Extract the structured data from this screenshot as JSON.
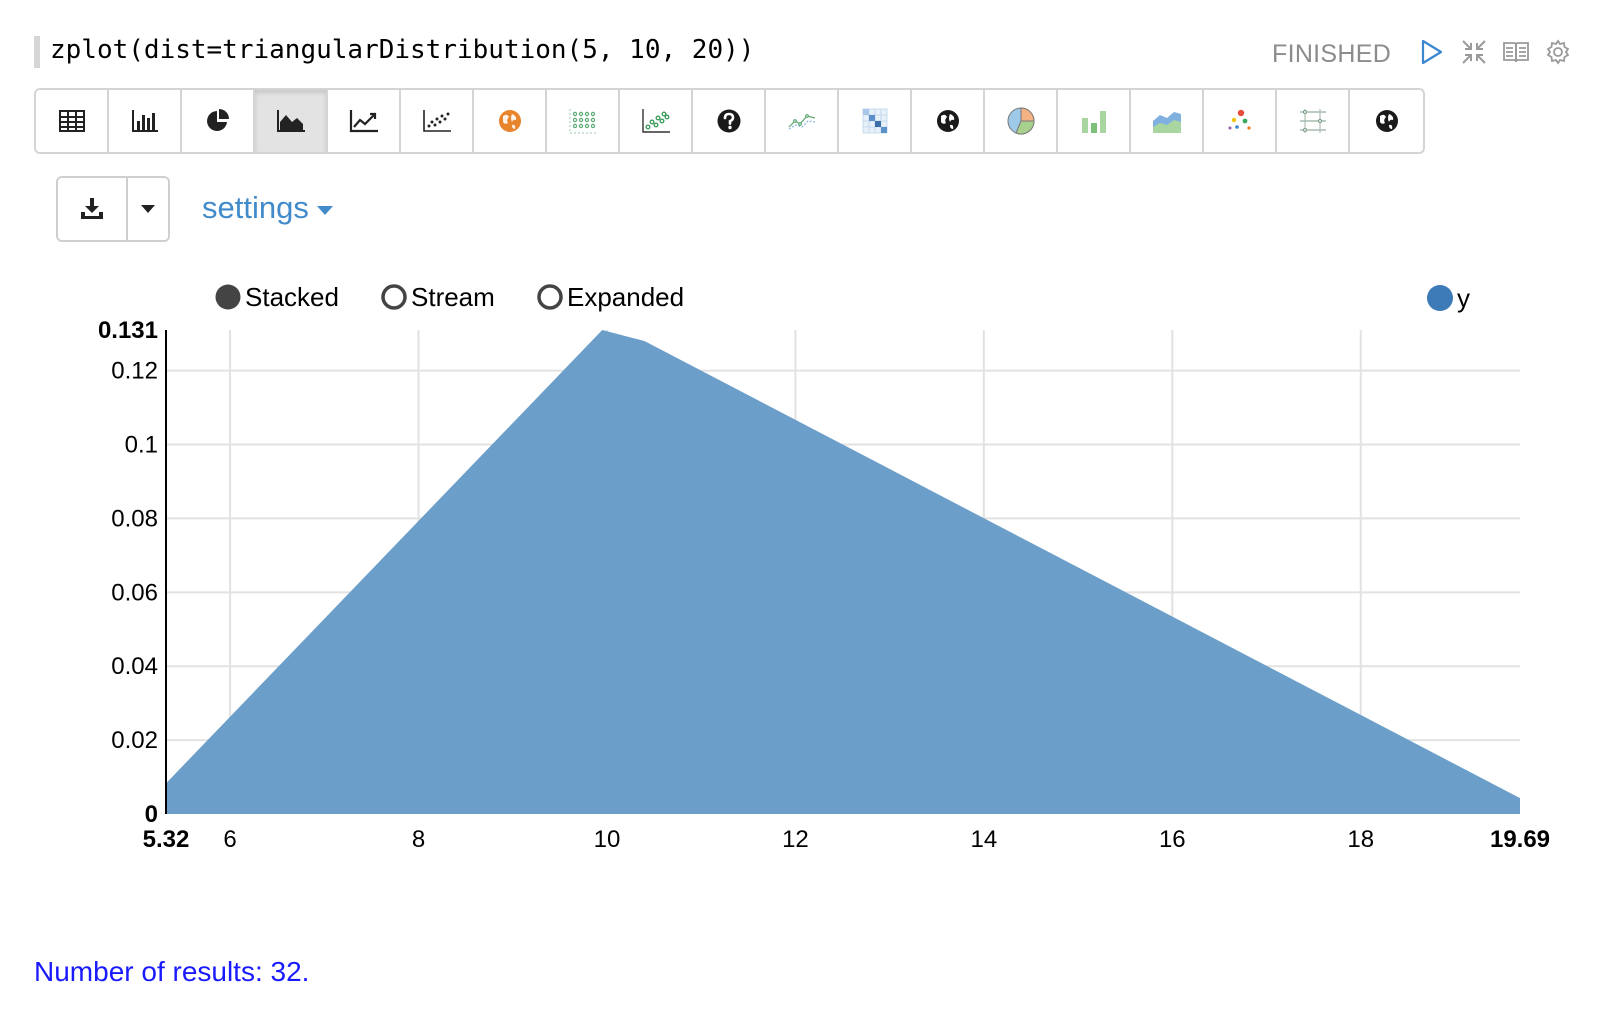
{
  "paragraph": {
    "code": "zplot(dist=triangularDistribution(5, 10, 20))",
    "status": "FINISHED",
    "icons": [
      "run-icon",
      "collapse-icon",
      "book-icon",
      "gear-icon"
    ]
  },
  "toolbar": {
    "buttons": [
      {
        "name": "table-icon",
        "active": false
      },
      {
        "name": "bar-chart-icon",
        "active": false
      },
      {
        "name": "pie-chart-icon",
        "active": false
      },
      {
        "name": "area-chart-icon",
        "active": true
      },
      {
        "name": "line-chart-icon",
        "active": false
      },
      {
        "name": "scatter-chart-icon",
        "active": false
      },
      {
        "name": "globe-orange-icon",
        "active": false
      },
      {
        "name": "dot-grid-icon",
        "active": false
      },
      {
        "name": "scatter-green-icon",
        "active": false
      },
      {
        "name": "question-icon",
        "active": false
      },
      {
        "name": "line-green-icon",
        "active": false
      },
      {
        "name": "heatmap-icon",
        "active": false
      },
      {
        "name": "globe-icon",
        "active": false
      },
      {
        "name": "pie-color-icon",
        "active": false
      },
      {
        "name": "bar-green-icon",
        "active": false
      },
      {
        "name": "area-color-icon",
        "active": false
      },
      {
        "name": "bubble-icon",
        "active": false
      },
      {
        "name": "parallel-coords-icon",
        "active": false
      },
      {
        "name": "globe-dark-icon",
        "active": false
      }
    ]
  },
  "controls": {
    "download_icon": "download-icon",
    "settings_label": "settings"
  },
  "chart_options": {
    "modes": [
      {
        "label": "Stacked",
        "selected": true
      },
      {
        "label": "Stream",
        "selected": false
      },
      {
        "label": "Expanded",
        "selected": false
      }
    ],
    "legend": [
      {
        "label": "y",
        "color": "#3d7ab8"
      }
    ]
  },
  "colors": {
    "area_fill": "#6b9ec8",
    "link": "#428bca",
    "results_text": "#1a1aff"
  },
  "chart_data": {
    "type": "area",
    "title": "",
    "xlabel": "",
    "ylabel": "",
    "xlim": [
      5.32,
      19.69
    ],
    "ylim": [
      0,
      0.131
    ],
    "x_ticks": [
      "6",
      "8",
      "10",
      "12",
      "14",
      "16",
      "18"
    ],
    "x_edge_labels": [
      "5.32",
      "19.69"
    ],
    "y_ticks": [
      "0.02",
      "0.04",
      "0.06",
      "0.08",
      "0.1",
      "0.12"
    ],
    "y_edge_labels": [
      "0",
      "0.131"
    ],
    "grid": true,
    "legend_position": "top-right",
    "series": [
      {
        "name": "y",
        "x": [
          5.32,
          9.95,
          10.4,
          19.69
        ],
        "y": [
          0.0083,
          0.131,
          0.128,
          0.0043
        ]
      }
    ]
  },
  "footer": {
    "results_text": "Number of results: 32."
  }
}
